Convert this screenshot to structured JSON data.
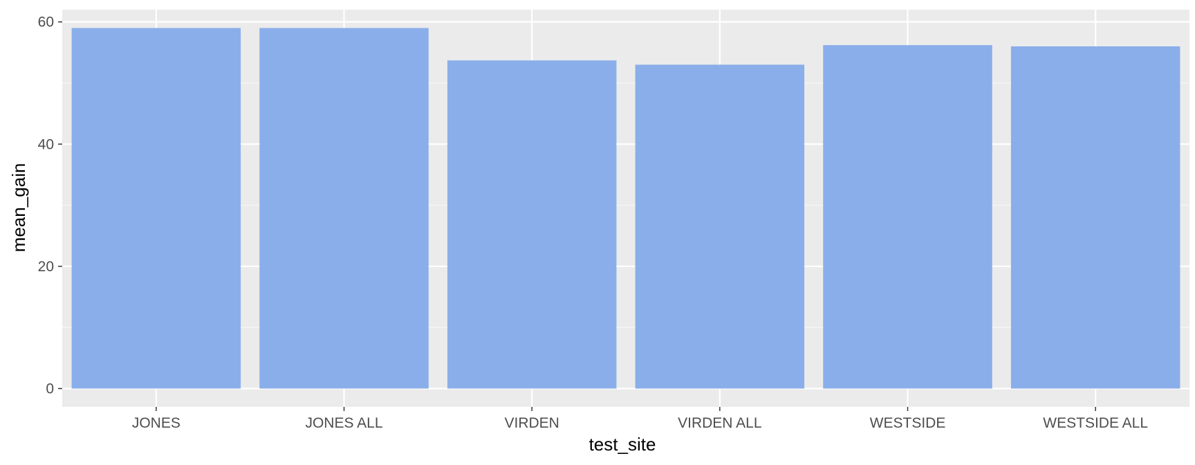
{
  "colors": {
    "bar_fill": "#8aaeea",
    "panel_background": "#ebebeb",
    "grid_major": "#ffffff",
    "grid_minor": "#f7f7f7",
    "tick_text": "#4d4d4d",
    "axis_title_text": "#000000"
  },
  "chart_data": {
    "type": "bar",
    "title": "",
    "xlabel": "test_site",
    "ylabel": "mean_gain",
    "categories": [
      "JONES",
      "JONES ALL",
      "VIRDEN",
      "VIRDEN ALL",
      "WESTSIDE",
      "WESTSIDE ALL"
    ],
    "values": [
      59.0,
      59.0,
      53.7,
      53.0,
      56.2,
      56.0
    ],
    "ylim": [
      -3,
      62
    ],
    "y_ticks": [
      0,
      20,
      40,
      60
    ],
    "y_tick_labels": [
      "0",
      "20",
      "40",
      "60"
    ],
    "grid": true,
    "legend": "none"
  }
}
